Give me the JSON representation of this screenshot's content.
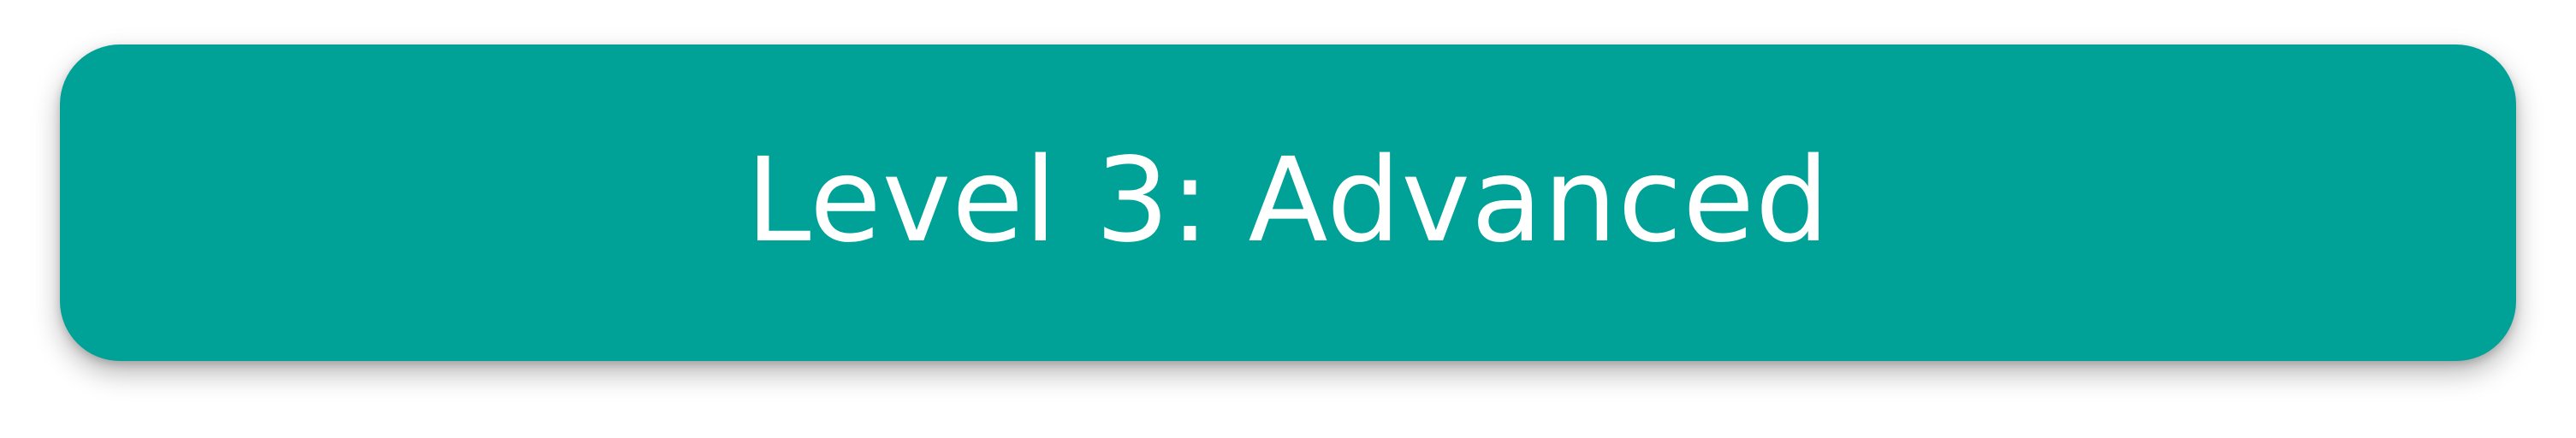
{
  "banner": {
    "title": "Level 3: Advanced"
  },
  "colors": {
    "banner_background": "#00a196",
    "banner_text": "#ffffff",
    "page_background": "#ffffff"
  }
}
